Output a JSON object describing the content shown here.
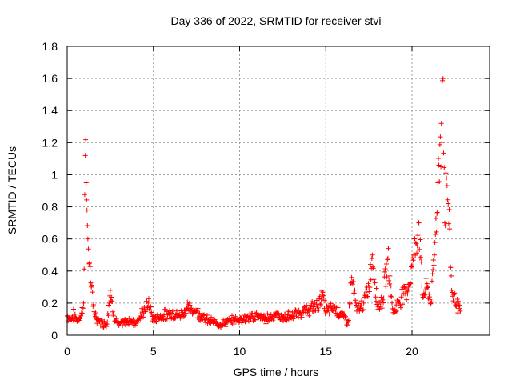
{
  "chart_data": {
    "type": "scatter",
    "title": "Day 336 of 2022, SRMTID for receiver stvi",
    "xlabel": "GPS time / hours",
    "ylabel": "SRMTID / TECUs",
    "xlim": [
      0,
      24.5
    ],
    "ylim": [
      0,
      1.8
    ],
    "xticks": [
      0,
      5,
      10,
      15,
      20
    ],
    "yticks": [
      0,
      0.2,
      0.4,
      0.6,
      0.8,
      1,
      1.2,
      1.4,
      1.6,
      1.8
    ],
    "grid": true,
    "marker": "+",
    "series_color": "#ff0000",
    "key_points": [
      {
        "x": 0.0,
        "y": 0.12
      },
      {
        "x": 0.2,
        "y": 0.1
      },
      {
        "x": 0.4,
        "y": 0.13
      },
      {
        "x": 0.6,
        "y": 0.09
      },
      {
        "x": 0.8,
        "y": 0.12
      },
      {
        "x": 0.95,
        "y": 0.2
      },
      {
        "x": 1.05,
        "y": 1.12
      },
      {
        "x": 1.1,
        "y": 0.95
      },
      {
        "x": 1.15,
        "y": 0.78
      },
      {
        "x": 1.2,
        "y": 0.6
      },
      {
        "x": 1.3,
        "y": 0.45
      },
      {
        "x": 1.4,
        "y": 0.3
      },
      {
        "x": 1.5,
        "y": 0.18
      },
      {
        "x": 1.7,
        "y": 0.1
      },
      {
        "x": 2.0,
        "y": 0.08
      },
      {
        "x": 2.3,
        "y": 0.07
      },
      {
        "x": 2.5,
        "y": 0.28
      },
      {
        "x": 2.7,
        "y": 0.12
      },
      {
        "x": 3.0,
        "y": 0.06
      },
      {
        "x": 3.5,
        "y": 0.09
      },
      {
        "x": 4.0,
        "y": 0.08
      },
      {
        "x": 4.5,
        "y": 0.16
      },
      {
        "x": 4.7,
        "y": 0.2
      },
      {
        "x": 5.0,
        "y": 0.1
      },
      {
        "x": 5.5,
        "y": 0.12
      },
      {
        "x": 6.0,
        "y": 0.14
      },
      {
        "x": 6.5,
        "y": 0.12
      },
      {
        "x": 7.0,
        "y": 0.17
      },
      {
        "x": 7.5,
        "y": 0.15
      },
      {
        "x": 8.0,
        "y": 0.1
      },
      {
        "x": 8.5,
        "y": 0.08
      },
      {
        "x": 9.0,
        "y": 0.07
      },
      {
        "x": 9.5,
        "y": 0.09
      },
      {
        "x": 10.0,
        "y": 0.1
      },
      {
        "x": 10.5,
        "y": 0.11
      },
      {
        "x": 11.0,
        "y": 0.12
      },
      {
        "x": 11.5,
        "y": 0.1
      },
      {
        "x": 12.0,
        "y": 0.13
      },
      {
        "x": 12.5,
        "y": 0.11
      },
      {
        "x": 13.0,
        "y": 0.12
      },
      {
        "x": 13.5,
        "y": 0.14
      },
      {
        "x": 14.0,
        "y": 0.16
      },
      {
        "x": 14.5,
        "y": 0.18
      },
      {
        "x": 14.8,
        "y": 0.25
      },
      {
        "x": 15.0,
        "y": 0.15
      },
      {
        "x": 15.5,
        "y": 0.17
      },
      {
        "x": 16.0,
        "y": 0.12
      },
      {
        "x": 16.3,
        "y": 0.08
      },
      {
        "x": 16.5,
        "y": 0.36
      },
      {
        "x": 16.8,
        "y": 0.15
      },
      {
        "x": 17.2,
        "y": 0.2
      },
      {
        "x": 17.5,
        "y": 0.3
      },
      {
        "x": 17.7,
        "y": 0.5
      },
      {
        "x": 18.0,
        "y": 0.18
      },
      {
        "x": 18.3,
        "y": 0.22
      },
      {
        "x": 18.6,
        "y": 0.48
      },
      {
        "x": 18.9,
        "y": 0.14
      },
      {
        "x": 19.2,
        "y": 0.2
      },
      {
        "x": 19.5,
        "y": 0.26
      },
      {
        "x": 19.8,
        "y": 0.3
      },
      {
        "x": 20.1,
        "y": 0.5
      },
      {
        "x": 20.4,
        "y": 0.7
      },
      {
        "x": 20.6,
        "y": 0.25
      },
      {
        "x": 20.9,
        "y": 0.3
      },
      {
        "x": 21.1,
        "y": 0.2
      },
      {
        "x": 21.3,
        "y": 0.5
      },
      {
        "x": 21.5,
        "y": 0.95
      },
      {
        "x": 21.7,
        "y": 1.32
      },
      {
        "x": 21.8,
        "y": 1.6
      },
      {
        "x": 21.9,
        "y": 0.7
      },
      {
        "x": 22.0,
        "y": 0.98
      },
      {
        "x": 22.1,
        "y": 0.82
      },
      {
        "x": 22.3,
        "y": 0.28
      },
      {
        "x": 22.6,
        "y": 0.2
      },
      {
        "x": 22.8,
        "y": 0.15
      }
    ]
  }
}
